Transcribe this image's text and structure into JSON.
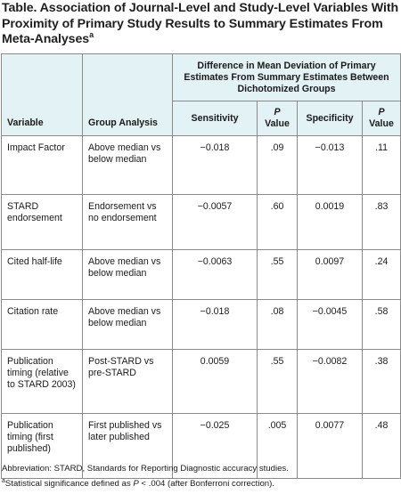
{
  "title": {
    "text": "Table. Association of Journal-Level and Study-Level Variables With Proximity of Primary Study Results to Summary Estimates From Meta-Analyses",
    "superscript": "a"
  },
  "header": {
    "variable": "Variable",
    "group_analysis": "Group Analysis",
    "group_title": "Difference in Mean Deviation of Primary Estimates From Summary Estimates Between Dichotomized Groups",
    "sensitivity": "Sensitivity",
    "p_italic": "P",
    "p_value": "Value",
    "specificity": "Specificity"
  },
  "rows": [
    {
      "variable": "Impact Factor",
      "group": "Above median vs below median",
      "sensitivity": "−0.018",
      "p_sens": ".09",
      "specificity": "−0.013",
      "p_spec": ".11"
    },
    {
      "variable": "STARD endorsement",
      "group": "Endorsement vs no endorsement",
      "sensitivity": "−0.0057",
      "p_sens": ".60",
      "specificity": "0.0019",
      "p_spec": ".83"
    },
    {
      "variable": "Cited half-life",
      "group": "Above median vs below median",
      "sensitivity": "−0.0063",
      "p_sens": ".55",
      "specificity": "0.0097",
      "p_spec": ".24"
    },
    {
      "variable": "Citation rate",
      "group": "Above median vs below median",
      "sensitivity": "−0.018",
      "p_sens": ".08",
      "specificity": "−0.0045",
      "p_spec": ".58"
    },
    {
      "variable": "Publication timing (relative to STARD 2003)",
      "group": "Post-STARD vs pre-STARD",
      "sensitivity": "0.0059",
      "p_sens": ".55",
      "specificity": "−0.0082",
      "p_spec": ".38"
    },
    {
      "variable": "Publication timing (first published)",
      "group": "First published vs later published",
      "sensitivity": "−0.025",
      "p_sens": ".005",
      "specificity": "0.0077",
      "p_spec": ".48"
    }
  ],
  "footnotes": {
    "abbreviation": "Abbreviation: STARD, Standards for Reporting Diagnostic accuracy studies.",
    "a_marker": "a",
    "a_text_before": "Statistical significance defined as ",
    "a_p": "P",
    "a_text_after": " < .004 (after Bonferroni correction)."
  }
}
